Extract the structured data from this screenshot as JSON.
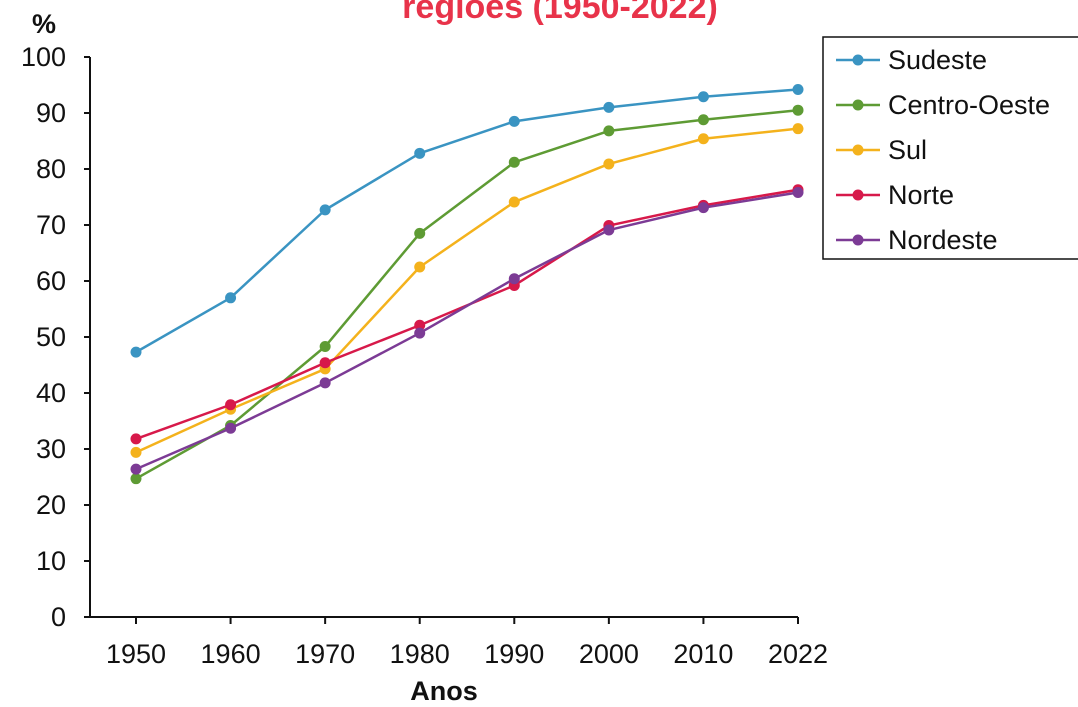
{
  "chart_data": {
    "type": "line",
    "title": "regiões (1950-2022)",
    "xlabel": "Anos",
    "ylabel": "%",
    "categories": [
      "1950",
      "1960",
      "1970",
      "1980",
      "1990",
      "2000",
      "2010",
      "2022"
    ],
    "ylim": [
      0,
      100
    ],
    "yticks": [
      0,
      10,
      20,
      30,
      40,
      50,
      60,
      70,
      80,
      90,
      100
    ],
    "grid": false,
    "legend_position": "top-right",
    "series": [
      {
        "name": "Sudeste",
        "color": "#3a94c2",
        "values": [
          47.3,
          57.0,
          72.7,
          82.8,
          88.5,
          91.0,
          92.9,
          94.2
        ]
      },
      {
        "name": "Centro-Oeste",
        "color": "#5e9b34",
        "values": [
          24.7,
          34.2,
          48.3,
          68.5,
          81.2,
          86.8,
          88.8,
          90.5
        ]
      },
      {
        "name": "Sul",
        "color": "#f4b21c",
        "values": [
          29.4,
          37.1,
          44.3,
          62.5,
          74.1,
          80.9,
          85.4,
          87.2
        ]
      },
      {
        "name": "Norte",
        "color": "#d7194a",
        "values": [
          31.8,
          37.9,
          45.4,
          52.1,
          59.2,
          69.9,
          73.5,
          76.3
        ]
      },
      {
        "name": "Nordeste",
        "color": "#7c3b95",
        "values": [
          26.4,
          33.7,
          41.8,
          50.7,
          60.4,
          69.1,
          73.1,
          75.8
        ]
      }
    ]
  }
}
